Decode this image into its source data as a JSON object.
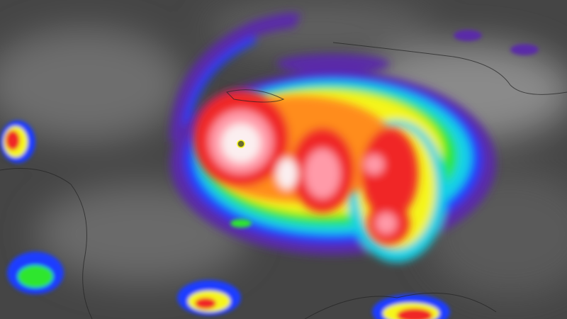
{
  "image": {
    "subject": "hurricane",
    "colors": {
      "background": "#454545",
      "cloud_gray": "#8a8a8a",
      "purple": "#5a2aa8",
      "blue": "#1a3cff",
      "cyan": "#19d2e6",
      "green": "#2ee62e",
      "yellow": "#f5f51e",
      "orange": "#ff8c1a",
      "red": "#f02828",
      "pink": "#ff9aa8",
      "white": "#fbeff0",
      "eye": "#6b6b30"
    }
  }
}
